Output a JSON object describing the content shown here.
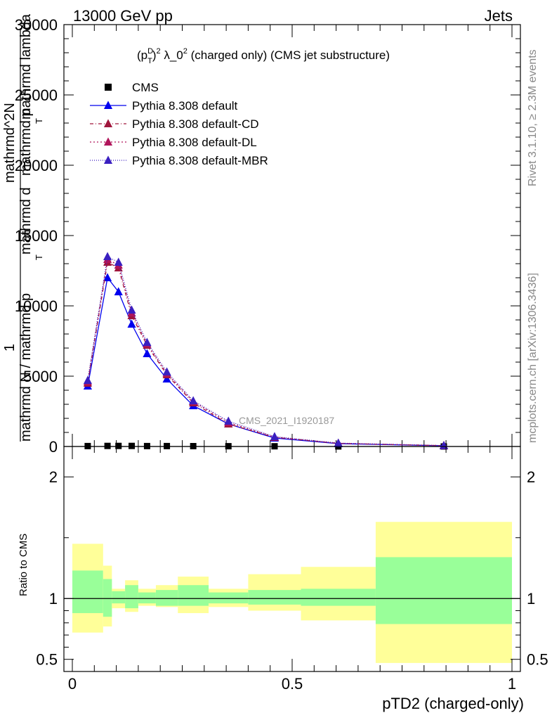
{
  "header": {
    "left": "13000 GeV pp",
    "right": "Jets"
  },
  "side_labels": {
    "rivet": "Rivet 3.1.10, ≥ 2.3M events",
    "mcplots": "mcplots.cern.ch [arXiv:1306.3436]"
  },
  "watermark": "CMS_2021_I1920187",
  "chart_data": [
    {
      "type": "line",
      "title": "(p_T^D)^2 λ_0^2 (charged only) (CMS jet substructure)",
      "title_parts": {
        "p": "(p",
        "sup1": "D",
        "sub1": "T",
        "mid": ")",
        "sup2": "2",
        "lam": " λ_0",
        "sup3": "2",
        "rest": " (charged only) (CMS jet substructure)"
      },
      "ylabel_lines": [
        "1",
        "mathrmd N / mathrmd p",
        "T",
        "mathrmd d",
        "mathrmd^2N",
        "mathrmd p",
        "T",
        "mathrmd lambda"
      ],
      "xlim": [
        0,
        1
      ],
      "ylim": [
        0,
        30000
      ],
      "y_ticks": [
        0,
        5000,
        10000,
        15000,
        20000,
        25000,
        30000
      ],
      "y_tick_labels": [
        "0",
        "5000",
        "10000",
        "15000",
        "20000",
        "25000",
        "30000"
      ],
      "legend_position": "top-left",
      "x": [
        0.035,
        0.08,
        0.105,
        0.135,
        0.17,
        0.215,
        0.275,
        0.355,
        0.46,
        0.605,
        0.845
      ],
      "series": [
        {
          "name": "CMS",
          "color": "#000000",
          "marker": "square",
          "values": [
            30,
            40,
            40,
            40,
            30,
            30,
            25,
            20,
            15,
            5,
            2
          ]
        },
        {
          "name": "Pythia 8.308 default",
          "color": "#0000ee",
          "marker": "triangle",
          "dash": "",
          "values": [
            4300,
            12000,
            11000,
            8700,
            6600,
            4800,
            2900,
            1600,
            600,
            200,
            50
          ]
        },
        {
          "name": "Pythia 8.308 default-CD",
          "color": "#a0163c",
          "marker": "triangle",
          "dash": "5,3,1,3",
          "values": [
            4500,
            13100,
            12700,
            9300,
            7200,
            5100,
            3100,
            1600,
            650,
            220,
            60
          ]
        },
        {
          "name": "Pythia 8.308 default-DL",
          "color": "#b0145a",
          "marker": "triangle",
          "dash": "2,3",
          "values": [
            4600,
            13300,
            12900,
            9500,
            7300,
            5200,
            3200,
            1700,
            670,
            230,
            60
          ]
        },
        {
          "name": "Pythia 8.308 default-MBR",
          "color": "#3a1fc0",
          "marker": "triangle",
          "dash": "1,2",
          "values": [
            4700,
            13500,
            13100,
            9700,
            7400,
            5300,
            3250,
            1800,
            700,
            240,
            65
          ]
        }
      ]
    },
    {
      "type": "area",
      "ylabel": "Ratio to CMS",
      "xlabel": "pTD2 (charged-only)",
      "xlim": [
        0,
        1
      ],
      "ylim": [
        0.4,
        2.25
      ],
      "x_ticks": [
        0,
        0.5,
        1
      ],
      "x_tick_labels": [
        "0",
        "0.5",
        "1"
      ],
      "y_ticks": [
        0.5,
        1,
        2
      ],
      "y_tick_labels": [
        "0.5",
        "1",
        "2"
      ],
      "bins": [
        0,
        0.07,
        0.09,
        0.12,
        0.15,
        0.19,
        0.24,
        0.31,
        0.4,
        0.52,
        0.69,
        1
      ],
      "band_inner": [
        [
          0.88,
          1.23
        ],
        [
          0.85,
          1.16
        ],
        [
          0.96,
          1.06
        ],
        [
          0.92,
          1.11
        ],
        [
          0.96,
          1.05
        ],
        [
          0.94,
          1.07
        ],
        [
          0.94,
          1.11
        ],
        [
          0.96,
          1.05
        ],
        [
          0.95,
          1.07
        ],
        [
          0.94,
          1.08
        ],
        [
          0.79,
          1.34
        ]
      ],
      "band_outer": [
        [
          0.72,
          1.45
        ],
        [
          0.77,
          1.27
        ],
        [
          0.92,
          1.08
        ],
        [
          0.89,
          1.15
        ],
        [
          0.94,
          1.08
        ],
        [
          0.93,
          1.11
        ],
        [
          0.88,
          1.18
        ],
        [
          0.93,
          1.08
        ],
        [
          0.9,
          1.2
        ],
        [
          0.82,
          1.26
        ],
        [
          0.47,
          1.63
        ]
      ]
    }
  ]
}
